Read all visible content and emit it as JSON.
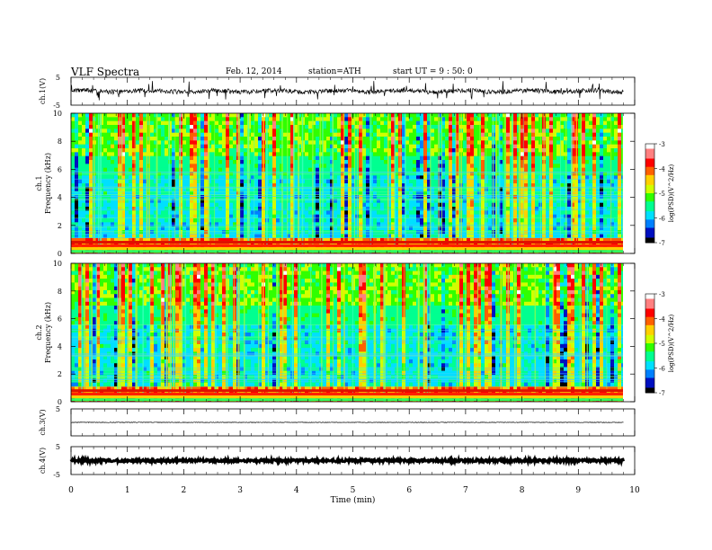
{
  "header": {
    "title": "VLF Spectra",
    "date": "Feb. 12, 2014",
    "station": "station=ATH",
    "start_ut": "start  UT =   9 : 50: 0"
  },
  "chart_data": [
    {
      "type": "line",
      "panel": "ch1-waveform",
      "ylabel": "ch.1(V)",
      "ylim": [
        -5,
        5
      ],
      "yticks": [
        "5",
        "-5"
      ],
      "baseline": 0,
      "x_end": 9.8
    },
    {
      "type": "heatmap",
      "panel": "ch1-spectrogram",
      "ylabel_channel": "ch.1",
      "ylabel": "Frequency  (kHz)",
      "ylim": [
        0,
        10
      ],
      "yticks": [
        "0",
        "2",
        "4",
        "6",
        "8",
        "10"
      ],
      "colorbar": {
        "label": "log(PSD)(V^2/Hz)",
        "range": [
          -7,
          -3
        ],
        "ticks": [
          "-3",
          "-4",
          "-5",
          "-6",
          "-7"
        ],
        "colors": [
          "#000000",
          "#0010c0",
          "#0080ff",
          "#00e0ff",
          "#00ff90",
          "#30ff00",
          "#d0ff00",
          "#ffd000",
          "#ff6000",
          "#ff0000",
          "#ff8080",
          "#ffffff"
        ]
      }
    },
    {
      "type": "heatmap",
      "panel": "ch2-spectrogram",
      "ylabel_channel": "ch.2",
      "ylabel": "Frequency  (kHz)",
      "ylim": [
        0,
        10
      ],
      "yticks": [
        "0",
        "2",
        "4",
        "6",
        "8",
        "10"
      ],
      "colorbar": {
        "label": "log(PSD)(V^2/Hz)",
        "range": [
          -7,
          -3
        ],
        "ticks": [
          "-3",
          "-4",
          "-5",
          "-6",
          "-7"
        ],
        "colors": [
          "#000000",
          "#0010c0",
          "#0080ff",
          "#00e0ff",
          "#00ff90",
          "#30ff00",
          "#d0ff00",
          "#ffd000",
          "#ff6000",
          "#ff0000",
          "#ff8080",
          "#ffffff"
        ]
      }
    },
    {
      "type": "line",
      "panel": "ch3-waveform",
      "ylabel": "ch.3(V)",
      "ylim": [
        -5,
        5
      ],
      "yticks": [
        "5"
      ],
      "baseline": 0
    },
    {
      "type": "line",
      "panel": "ch4-waveform",
      "ylabel": "ch.4(V)",
      "ylim": [
        -5,
        5
      ],
      "yticks": [
        "5",
        "-5"
      ],
      "baseline": 0
    }
  ],
  "xaxis": {
    "label": "Time  (min)",
    "range": [
      0,
      10
    ],
    "ticks": [
      "0",
      "1",
      "2",
      "3",
      "4",
      "5",
      "6",
      "7",
      "8",
      "9",
      "10"
    ],
    "data_end": 9.8
  }
}
